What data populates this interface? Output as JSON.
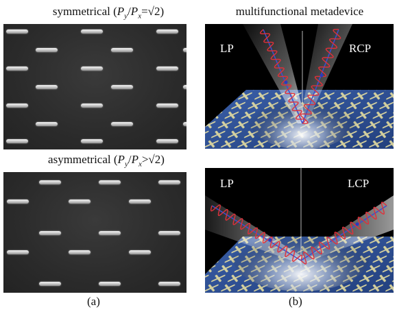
{
  "figure": {
    "panel_a": {
      "top_caption_text": "symmetrical (",
      "top_caption_py": "P",
      "top_caption_py_sub": "y",
      "top_caption_slash": "/",
      "top_caption_px": "P",
      "top_caption_px_sub": "x",
      "top_caption_rel": "=√2)",
      "bottom_caption_text": "asymmetrical (",
      "bottom_caption_py": "P",
      "bottom_caption_py_sub": "y",
      "bottom_caption_slash": "/",
      "bottom_caption_px": "P",
      "bottom_caption_px_sub": "x",
      "bottom_caption_rel": ">√2)",
      "label": "(a)"
    },
    "panel_b": {
      "title": "multifunctional metadevice",
      "top_left_beam": "LP",
      "top_right_beam": "RCP",
      "bottom_left_beam": "LP",
      "bottom_right_beam": "LCP",
      "label": "(b)"
    }
  }
}
